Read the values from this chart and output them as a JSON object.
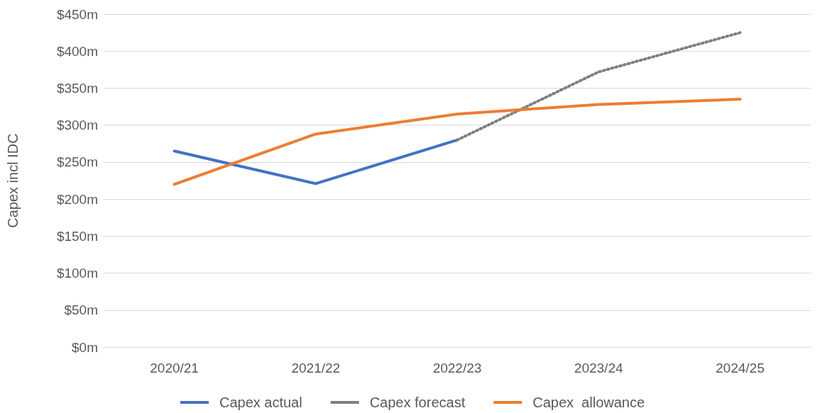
{
  "chart_data": {
    "type": "line",
    "ylabel": "Capex incl IDC",
    "categories": [
      "2020/21",
      "2021/22",
      "2022/23",
      "2023/24",
      "2024/25"
    ],
    "series": [
      {
        "name": "Capex actual",
        "color": "#4472c4",
        "line_style": "solid",
        "values": [
          265,
          221,
          280,
          null,
          null
        ]
      },
      {
        "name": "Capex forecast",
        "color": "#7f7f7f",
        "line_style": "dotted",
        "values": [
          null,
          null,
          280,
          372,
          425
        ]
      },
      {
        "name": "Capex  allowance",
        "color": "#ed7d31",
        "line_style": "solid",
        "values": [
          220,
          288,
          315,
          328,
          335
        ]
      }
    ],
    "ylim": [
      0,
      450
    ],
    "yticks": [
      {
        "value": 0,
        "label": "$0m"
      },
      {
        "value": 50,
        "label": "$50m"
      },
      {
        "value": 100,
        "label": "$100m"
      },
      {
        "value": 150,
        "label": "$150m"
      },
      {
        "value": 200,
        "label": "$200m"
      },
      {
        "value": 250,
        "label": "$250m"
      },
      {
        "value": 300,
        "label": "$300m"
      },
      {
        "value": 350,
        "label": "$350m"
      },
      {
        "value": 400,
        "label": "$400m"
      },
      {
        "value": 450,
        "label": "$450m"
      }
    ],
    "grid": "y",
    "legend": "bottom",
    "marker": "none"
  }
}
